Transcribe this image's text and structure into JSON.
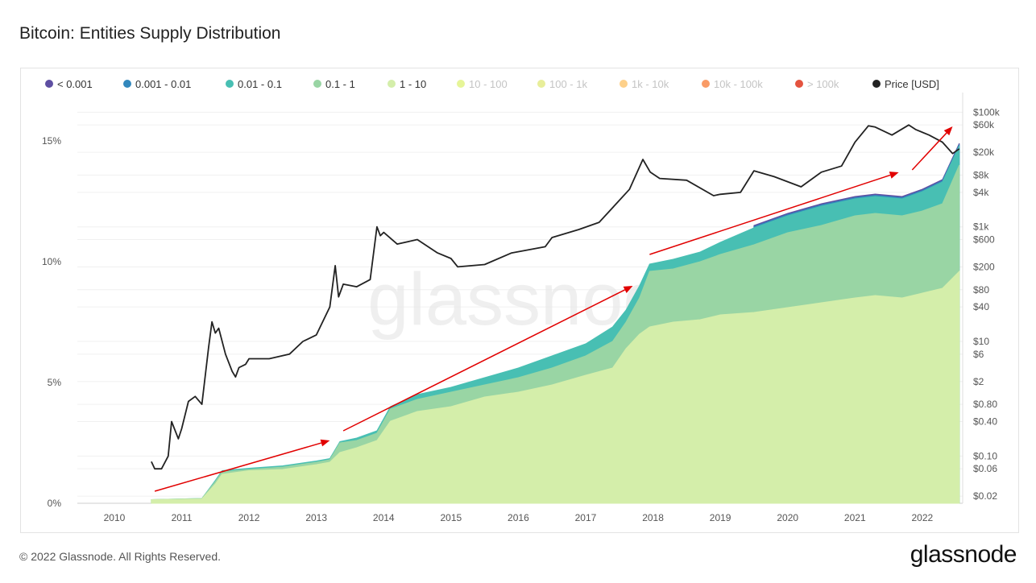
{
  "page": {
    "title": "Bitcoin: Entities Supply Distribution",
    "footer": "© 2022 Glassnode. All Rights Reserved.",
    "brand": "glassnode",
    "watermark": "glassnode"
  },
  "chart_data": {
    "type": "area",
    "title": "Bitcoin: Entities Supply Distribution",
    "x_range": [
      2009.45,
      2022.6
    ],
    "x_ticks": [
      "2010",
      "2011",
      "2012",
      "2013",
      "2014",
      "2015",
      "2016",
      "2017",
      "2018",
      "2019",
      "2020",
      "2021",
      "2022"
    ],
    "y_left": {
      "unit": "%",
      "range": [
        0,
        17
      ],
      "ticks": [
        {
          "v": 0,
          "label": "0%"
        },
        {
          "v": 5,
          "label": "5%"
        },
        {
          "v": 10,
          "label": "10%"
        },
        {
          "v": 15,
          "label": "15%"
        }
      ]
    },
    "y_right": {
      "scale": "log",
      "unit": "USD",
      "range": [
        0.015,
        220000
      ],
      "ticks": [
        {
          "v": 0.02,
          "label": "$0.02"
        },
        {
          "v": 0.06,
          "label": "$0.06"
        },
        {
          "v": 0.1,
          "label": "$0.10"
        },
        {
          "v": 0.4,
          "label": "$0.40"
        },
        {
          "v": 0.8,
          "label": "$0.80"
        },
        {
          "v": 2,
          "label": "$2"
        },
        {
          "v": 6,
          "label": "$6"
        },
        {
          "v": 10,
          "label": "$10"
        },
        {
          "v": 40,
          "label": "$40"
        },
        {
          "v": 80,
          "label": "$80"
        },
        {
          "v": 200,
          "label": "$200"
        },
        {
          "v": 600,
          "label": "$600"
        },
        {
          "v": 1000,
          "label": "$1k"
        },
        {
          "v": 4000,
          "label": "$4k"
        },
        {
          "v": 8000,
          "label": "$8k"
        },
        {
          "v": 20000,
          "label": "$20k"
        },
        {
          "v": 60000,
          "label": "$60k"
        },
        {
          "v": 100000,
          "label": "$100k"
        }
      ]
    },
    "legend": [
      {
        "label": "< 0.001",
        "color": "#5e4fa2",
        "active": true
      },
      {
        "label": "0.001 - 0.01",
        "color": "#3288bd",
        "active": true
      },
      {
        "label": "0.01 - 0.1",
        "color": "#48bfb3",
        "active": true
      },
      {
        "label": "0.1 - 1",
        "color": "#99d5a4",
        "active": true
      },
      {
        "label": "1 - 10",
        "color": "#d4eeaa",
        "active": true
      },
      {
        "label": "10 - 100",
        "color": "#e6f598",
        "active": false
      },
      {
        "label": "100 - 1k",
        "color": "#e8ee9a",
        "active": false
      },
      {
        "label": "1k - 10k",
        "color": "#fdd08a",
        "active": false
      },
      {
        "label": "10k - 100k",
        "color": "#f99b66",
        "active": false
      },
      {
        "label": "> 100k",
        "color": "#e4533f",
        "active": false
      },
      {
        "label": "Price [USD]",
        "color": "#222222",
        "active": true
      }
    ],
    "series": [
      {
        "name": "1 - 10",
        "color": "#d4eeaa",
        "x": [
          2010.55,
          2011.3,
          2011.5,
          2011.6,
          2012.0,
          2012.5,
          2013.0,
          2013.2,
          2013.35,
          2013.6,
          2013.9,
          2014.1,
          2014.5,
          2015.0,
          2015.5,
          2016.0,
          2016.5,
          2017.0,
          2017.4,
          2017.6,
          2017.8,
          2017.95,
          2018.3,
          2018.7,
          2019.0,
          2019.5,
          2020.0,
          2020.5,
          2021.0,
          2021.3,
          2021.7,
          2022.0,
          2022.3,
          2022.55
        ],
        "cum_values": [
          0.15,
          0.18,
          0.8,
          1.2,
          1.35,
          1.4,
          1.6,
          1.7,
          2.1,
          2.3,
          2.6,
          3.4,
          3.8,
          4.0,
          4.4,
          4.6,
          4.9,
          5.3,
          5.6,
          6.4,
          7.0,
          7.3,
          7.5,
          7.6,
          7.8,
          7.9,
          8.1,
          8.3,
          8.5,
          8.6,
          8.5,
          8.7,
          8.9,
          9.6
        ]
      },
      {
        "name": "0.1 - 1",
        "color": "#99d5a4",
        "x": [
          2010.55,
          2011.3,
          2011.5,
          2011.6,
          2012.0,
          2012.5,
          2013.0,
          2013.2,
          2013.35,
          2013.6,
          2013.9,
          2014.1,
          2014.5,
          2015.0,
          2015.5,
          2016.0,
          2016.5,
          2017.0,
          2017.4,
          2017.6,
          2017.8,
          2017.95,
          2018.3,
          2018.7,
          2019.0,
          2019.5,
          2020.0,
          2020.5,
          2021.0,
          2021.3,
          2021.7,
          2022.0,
          2022.3,
          2022.55
        ],
        "cum_values": [
          0.15,
          0.2,
          0.9,
          1.3,
          1.4,
          1.5,
          1.7,
          1.8,
          2.5,
          2.6,
          2.9,
          3.9,
          4.3,
          4.6,
          4.9,
          5.2,
          5.6,
          6.1,
          6.7,
          7.5,
          8.5,
          9.6,
          9.7,
          10.0,
          10.3,
          10.7,
          11.2,
          11.5,
          11.9,
          12.0,
          11.9,
          12.1,
          12.4,
          14.0
        ]
      },
      {
        "name": "0.01 - 0.1",
        "color": "#48bfb3",
        "x": [
          2010.55,
          2011.3,
          2011.5,
          2011.6,
          2012.0,
          2012.5,
          2013.0,
          2013.2,
          2013.35,
          2013.6,
          2013.9,
          2014.1,
          2014.5,
          2015.0,
          2015.5,
          2016.0,
          2016.5,
          2017.0,
          2017.4,
          2017.6,
          2017.8,
          2017.95,
          2018.3,
          2018.7,
          2019.0,
          2019.5,
          2020.0,
          2020.5,
          2021.0,
          2021.3,
          2021.7,
          2022.0,
          2022.3,
          2022.55
        ],
        "cum_values": [
          0.15,
          0.2,
          0.95,
          1.35,
          1.45,
          1.55,
          1.75,
          1.85,
          2.55,
          2.7,
          3.0,
          4.0,
          4.5,
          4.8,
          5.2,
          5.6,
          6.1,
          6.6,
          7.3,
          8.0,
          9.0,
          9.9,
          10.1,
          10.4,
          10.8,
          11.4,
          11.9,
          12.3,
          12.6,
          12.7,
          12.6,
          12.9,
          13.3,
          14.8
        ]
      },
      {
        "name": "0.001 - 0.01",
        "color": "#3288bd",
        "x": [
          2019.5,
          2020.0,
          2020.5,
          2021.0,
          2021.3,
          2021.7,
          2022.0,
          2022.3,
          2022.55
        ],
        "cum_values": [
          11.45,
          11.95,
          12.35,
          12.65,
          12.75,
          12.65,
          12.95,
          13.35,
          14.85
        ]
      },
      {
        "name": "< 0.001",
        "color": "#5e4fa2",
        "x": [
          2019.5,
          2020.0,
          2020.5,
          2021.0,
          2021.3,
          2021.7,
          2022.0,
          2022.3,
          2022.55
        ],
        "cum_values": [
          11.5,
          12.0,
          12.4,
          12.7,
          12.8,
          12.7,
          13.0,
          13.4,
          14.9
        ]
      },
      {
        "name": "Price [USD]",
        "color": "#222222",
        "axis": "right",
        "x": [
          2010.55,
          2010.6,
          2010.7,
          2010.8,
          2010.85,
          2010.95,
          2011.0,
          2011.1,
          2011.2,
          2011.3,
          2011.4,
          2011.45,
          2011.5,
          2011.55,
          2011.65,
          2011.75,
          2011.8,
          2011.85,
          2011.95,
          2012.0,
          2012.3,
          2012.6,
          2012.8,
          2013.0,
          2013.2,
          2013.28,
          2013.33,
          2013.4,
          2013.6,
          2013.8,
          2013.9,
          2013.95,
          2014.0,
          2014.2,
          2014.5,
          2014.8,
          2015.0,
          2015.1,
          2015.5,
          2015.9,
          2016.4,
          2016.5,
          2016.9,
          2017.2,
          2017.45,
          2017.65,
          2017.85,
          2017.96,
          2018.1,
          2018.5,
          2018.9,
          2019.0,
          2019.3,
          2019.5,
          2019.8,
          2020.2,
          2020.5,
          2020.8,
          2021.0,
          2021.2,
          2021.3,
          2021.55,
          2021.8,
          2021.9,
          2022.1,
          2022.3,
          2022.45,
          2022.55
        ],
        "values": [
          0.08,
          0.06,
          0.06,
          0.1,
          0.4,
          0.2,
          0.3,
          0.9,
          1.1,
          0.8,
          8,
          22,
          14,
          17,
          6,
          3,
          2.4,
          3.5,
          4,
          5,
          5,
          6,
          10,
          13,
          40,
          210,
          60,
          100,
          90,
          120,
          1000,
          700,
          800,
          500,
          600,
          350,
          280,
          200,
          220,
          350,
          450,
          650,
          900,
          1200,
          2500,
          4500,
          15000,
          9000,
          7000,
          6500,
          3500,
          3700,
          4000,
          9500,
          7500,
          5000,
          9000,
          11500,
          30000,
          58000,
          55000,
          40000,
          60000,
          50000,
          40000,
          30000,
          19000,
          23000
        ]
      }
    ],
    "annotations": [
      {
        "type": "arrow",
        "color": "#e10000",
        "from": [
          2010.6,
          0.5
        ],
        "to": [
          2013.2,
          2.6
        ]
      },
      {
        "type": "arrow",
        "color": "#e10000",
        "from": [
          2013.4,
          3.0
        ],
        "to": [
          2017.7,
          9.0
        ]
      },
      {
        "type": "arrow",
        "color": "#e10000",
        "from": [
          2017.95,
          10.3
        ],
        "to": [
          2021.65,
          13.7
        ]
      },
      {
        "type": "arrow",
        "color": "#e10000",
        "from": [
          2021.85,
          13.8
        ],
        "to": [
          2022.45,
          15.6
        ]
      }
    ]
  }
}
